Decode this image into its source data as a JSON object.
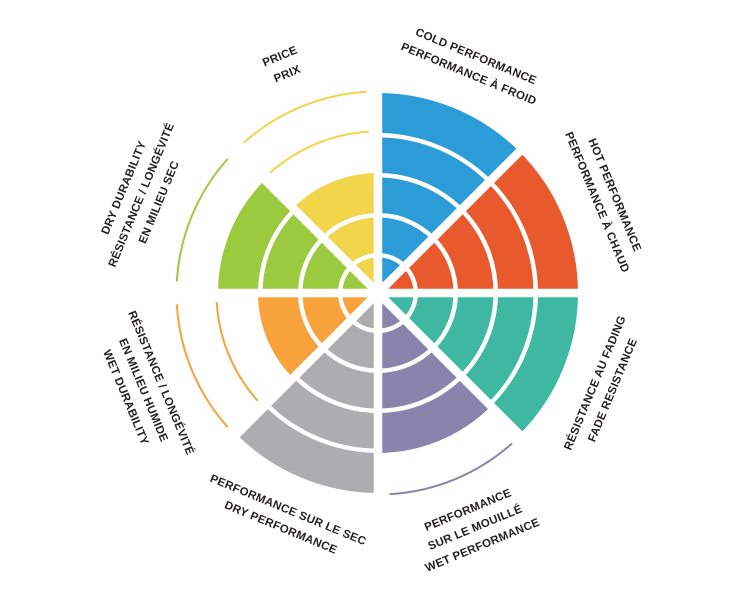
{
  "chart_data": {
    "type": "radial-rating-wheel",
    "title": "",
    "max_rating": 5,
    "rings": 5,
    "grid": "white ring separators inside filled sectors; unfilled rings drawn as thin colored arc outlines",
    "text_color": "#231f20",
    "segments": [
      {
        "id": "cold-performance",
        "label_lines": [
          "COLD PERFORMANCE",
          "PERFORMANCE À FROID"
        ],
        "value": 5,
        "color": "#2B9CD8",
        "mid_angle": 22.5
      },
      {
        "id": "hot-performance",
        "label_lines": [
          "HOT PERFORMANCE",
          "PERFORMANCE À CHAUD"
        ],
        "value": 5,
        "color": "#E8592E",
        "mid_angle": 67.5
      },
      {
        "id": "fade-resistance",
        "label_lines": [
          "RÉSISTANCE AU FADING",
          "FADE RESISTANCE"
        ],
        "value": 5,
        "color": "#3EB8A3",
        "mid_angle": 112.5
      },
      {
        "id": "wet-performance",
        "label_lines": [
          "PERFORMANCE",
          "SUR LE MOUILLÉ",
          "WET PERFORMANCE"
        ],
        "value": 4,
        "color": "#8A84AC",
        "mid_angle": 157.5
      },
      {
        "id": "dry-performance",
        "label_lines": [
          "PERFORMANCE SUR LE SEC",
          "DRY PERFORMANCE"
        ],
        "value": 5,
        "color": "#ADADAF",
        "mid_angle": 202.5
      },
      {
        "id": "wet-durability",
        "label_lines": [
          "RÉSISTANCE / LONGÉVITÉ",
          "EN MILIEU HUMIDE",
          "WET DURABILITY"
        ],
        "value": 3,
        "color": "#F8A23B",
        "mid_angle": 247.5
      },
      {
        "id": "dry-durability",
        "label_lines": [
          "DRY DURABILITY",
          "RÉSISTANCE / LONGÉVITÉ",
          "EN MILIEU SEC"
        ],
        "value": 4,
        "color": "#9BCA3E",
        "mid_angle": 292.5
      },
      {
        "id": "price",
        "label_lines": [
          "PRICE",
          "PRIX"
        ],
        "value": 3,
        "color": "#F1D54A",
        "mid_angle": 337.5
      }
    ]
  }
}
